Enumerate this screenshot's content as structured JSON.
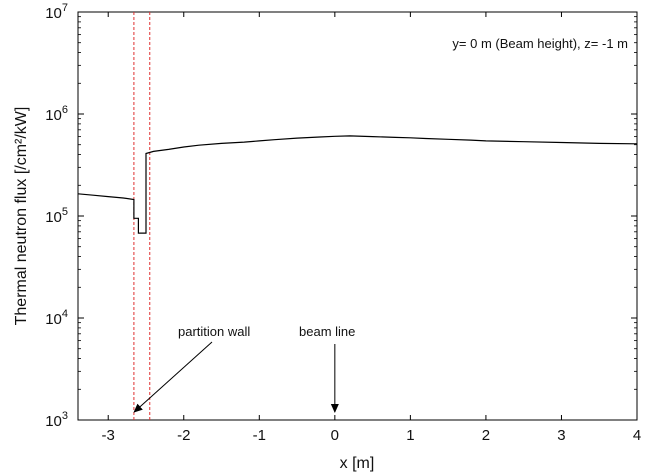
{
  "chart_data": {
    "type": "line",
    "title": "",
    "xlabel": "x [m]",
    "ylabel": "Thermal neutron flux [/cm²/kW]",
    "xlim": [
      -3.4,
      4
    ],
    "ylim": [
      1000,
      10000000
    ],
    "yscale": "log",
    "grid": false,
    "x_ticks": [
      -3,
      -2,
      -1,
      0,
      1,
      2,
      3,
      4
    ],
    "x_tick_labels": [
      "-3",
      "-2",
      "-1",
      "0",
      "1",
      "2",
      "3",
      "4"
    ],
    "y_ticks": [
      1000,
      10000,
      100000,
      1000000,
      10000000
    ],
    "y_tick_base": "10",
    "y_tick_exponents": [
      "3",
      "4",
      "5",
      "6",
      "7"
    ],
    "series": [
      {
        "x": [
          -3.4,
          -3.2,
          -3.0,
          -2.8,
          -2.66,
          -2.66,
          -2.6,
          -2.6,
          -2.5,
          -2.5,
          -2.4,
          -2.2,
          -2.0,
          -1.8,
          -1.5,
          -1.2,
          -1.0,
          -0.8,
          -0.5,
          -0.2,
          0.0,
          0.2,
          0.5,
          0.8,
          1.0,
          1.2,
          1.5,
          1.8,
          2.0,
          2.5,
          3.0,
          3.5,
          4.0
        ],
        "y": [
          165000,
          160000,
          155000,
          150000,
          145000,
          95000,
          95000,
          68000,
          68000,
          410000,
          430000,
          450000,
          475000,
          495000,
          515000,
          530000,
          545000,
          560000,
          580000,
          595000,
          605000,
          610000,
          600000,
          590000,
          585000,
          575000,
          565000,
          555000,
          545000,
          535000,
          525000,
          515000,
          510000
        ],
        "color": "#000000"
      }
    ],
    "partition_wall_lines": [
      -2.66,
      -2.45
    ],
    "partition_line_color": "#e03030",
    "annotations": {
      "condition": "y= 0 m (Beam height), z= -1 m",
      "partition_wall": "partition wall",
      "beam_line": "beam line"
    },
    "annotation_targets": {
      "partition_wall_x": -2.55,
      "beam_line_x": 0
    }
  }
}
